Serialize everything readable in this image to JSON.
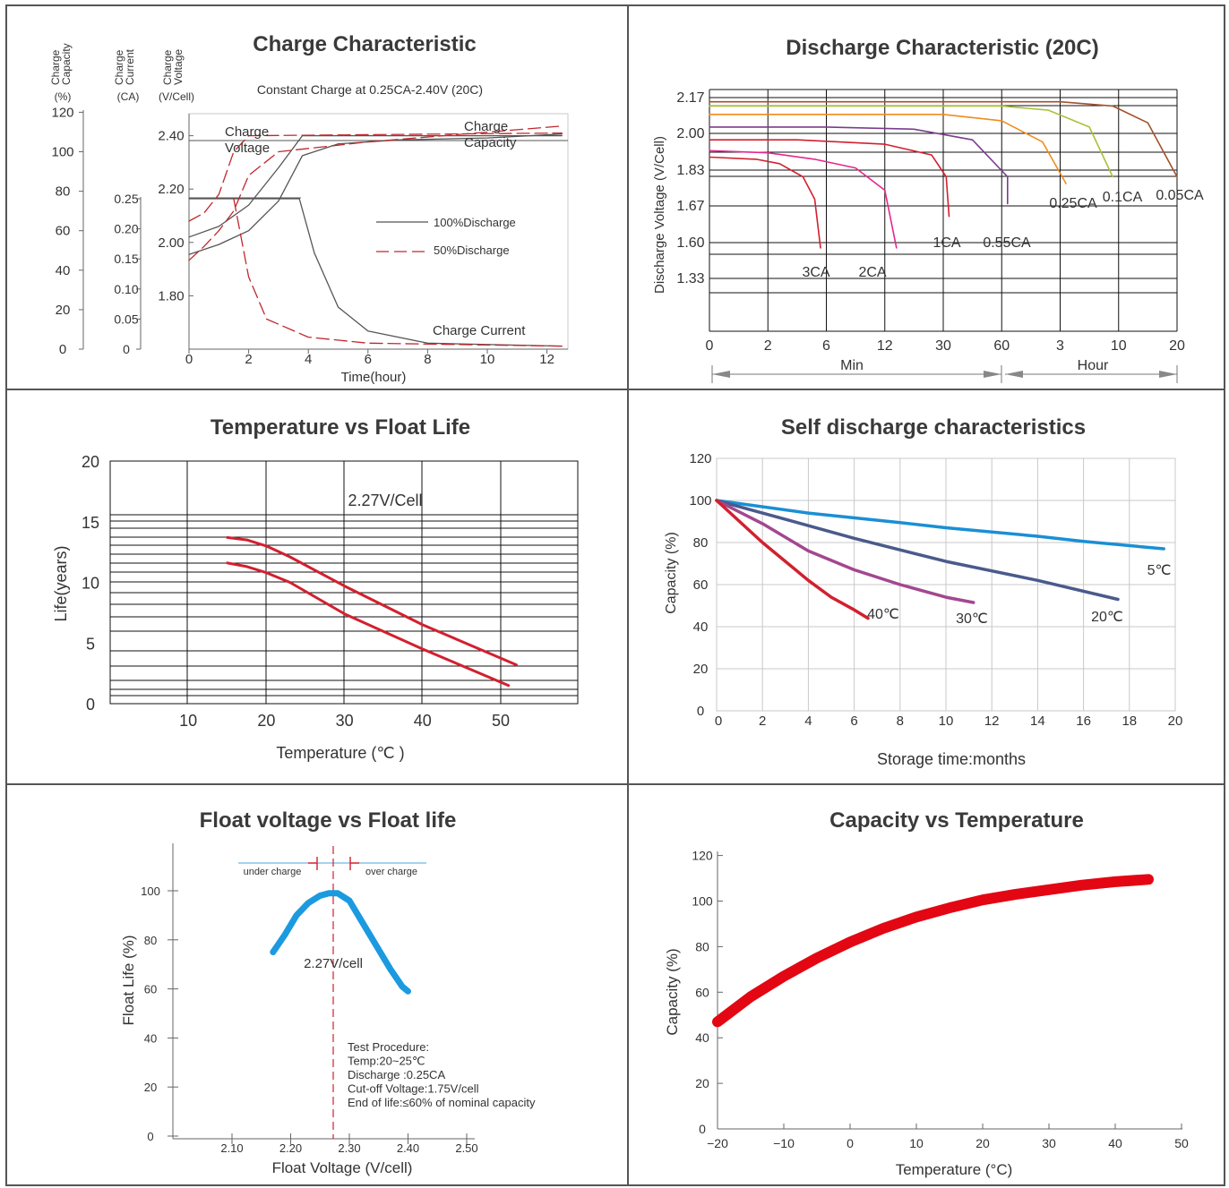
{
  "chart_data": [
    {
      "type": "line",
      "title": "Charge Characteristic",
      "subtitle": "Constant Charge at 0.25CA-2.40V  (20C)",
      "xlabel": "Time(hour)",
      "x_ticks": [
        "0",
        "2",
        "4",
        "6",
        "8",
        "10",
        "12"
      ],
      "axis_heads": {
        "capacity": [
          "Charge",
          "Capacity",
          "(%)"
        ],
        "current": [
          "Charge",
          "Current",
          "(CA)"
        ],
        "voltage": [
          "Charge",
          "Voltage",
          "(V/Cell)"
        ]
      },
      "capacity_ticks": [
        "120",
        "100",
        "80",
        "60",
        "40",
        "20",
        "0"
      ],
      "current_ticks": [
        "0.25",
        "0.20",
        "0.15",
        "0.10",
        "0.05",
        "0"
      ],
      "voltage_ticks": [
        "2.40",
        "2.20",
        "2.00",
        "1.80"
      ],
      "annotations": [
        "Charge",
        "Voltage",
        "Charge",
        "Capacity",
        "Charge Current"
      ],
      "series": [
        {
          "name": "100%Discharge",
          "color": "#555555",
          "voltage": [
            [
              0,
              2.02
            ],
            [
              1,
              2.06
            ],
            [
              2,
              2.14
            ],
            [
              3,
              2.28
            ],
            [
              3.8,
              2.4
            ],
            [
              12.5,
              2.4
            ]
          ],
          "capacity": [
            [
              0,
              48
            ],
            [
              1,
              53
            ],
            [
              2,
              60
            ],
            [
              3,
              75
            ],
            [
              3.8,
              98
            ],
            [
              5,
              104
            ],
            [
              7,
              106
            ],
            [
              10,
              107
            ],
            [
              12.5,
              109
            ]
          ],
          "current": [
            [
              0,
              0.25
            ],
            [
              3.7,
              0.25
            ],
            [
              4.2,
              0.16
            ],
            [
              5,
              0.07
            ],
            [
              6,
              0.03
            ],
            [
              8,
              0.01
            ],
            [
              12.5,
              0.005
            ]
          ]
        },
        {
          "name": "50%Discharge",
          "color": "#c0272d",
          "voltage": [
            [
              0,
              2.08
            ],
            [
              0.5,
              2.11
            ],
            [
              1,
              2.18
            ],
            [
              1.5,
              2.34
            ],
            [
              2,
              2.4
            ],
            [
              12.5,
              2.41
            ]
          ],
          "capacity": [
            [
              0,
              45
            ],
            [
              0.5,
              52
            ],
            [
              1,
              60
            ],
            [
              1.5,
              70
            ],
            [
              2,
              88
            ],
            [
              3,
              100
            ],
            [
              6,
              105
            ],
            [
              12.5,
              113
            ]
          ],
          "current": [
            [
              1.5,
              0.25
            ],
            [
              2,
              0.12
            ],
            [
              2.6,
              0.05
            ],
            [
              4,
              0.02
            ],
            [
              6,
              0.01
            ],
            [
              12.5,
              0.005
            ]
          ]
        }
      ]
    },
    {
      "type": "line",
      "title": "Discharge Characteristic (20C)",
      "ylabel": "Discharge Voltage (V/Cell)",
      "y_ticks": [
        "2.17",
        "2.00",
        "1.83",
        "1.67",
        "1.60",
        "1.33"
      ],
      "x_ticks": [
        "0",
        "2",
        "6",
        "12",
        "30",
        "60",
        "3",
        "10",
        "20"
      ],
      "x_units": [
        "Min",
        "Hour"
      ],
      "series": [
        {
          "name": "3CA",
          "color": "#d2202f",
          "points": [
            [
              0,
              1.89
            ],
            [
              0.8,
              1.88
            ],
            [
              1.2,
              1.86
            ],
            [
              1.6,
              1.8
            ],
            [
              1.8,
              1.7
            ],
            [
              1.9,
              1.56
            ]
          ]
        },
        {
          "name": "2CA",
          "color": "#e2288f",
          "points": [
            [
              0,
              1.92
            ],
            [
              1,
              1.91
            ],
            [
              1.8,
              1.88
            ],
            [
              2.5,
              1.84
            ],
            [
              3,
              1.74
            ],
            [
              3.2,
              1.56
            ]
          ]
        },
        {
          "name": "1CA",
          "color": "#d2202f",
          "points": [
            [
              0,
              1.97
            ],
            [
              1.5,
              1.97
            ],
            [
              3,
              1.95
            ],
            [
              3.8,
              1.9
            ],
            [
              4.05,
              1.8
            ],
            [
              4.1,
              1.65
            ]
          ]
        },
        {
          "name": "0.55CA",
          "color": "#7a3d8c",
          "points": [
            [
              0,
              2.03
            ],
            [
              2,
              2.03
            ],
            [
              3.5,
              2.02
            ],
            [
              4.5,
              1.97
            ],
            [
              5.1,
              1.8
            ],
            [
              5.1,
              1.68
            ]
          ]
        },
        {
          "name": "0.25CA",
          "color": "#f08c1e",
          "points": [
            [
              0,
              2.09
            ],
            [
              4,
              2.09
            ],
            [
              5,
              2.06
            ],
            [
              5.7,
              1.96
            ],
            [
              6.1,
              1.77
            ]
          ]
        },
        {
          "name": "0.1CA",
          "color": "#a9c23a",
          "points": [
            [
              0,
              2.13
            ],
            [
              5,
              2.13
            ],
            [
              5.8,
              2.11
            ],
            [
              6.5,
              2.03
            ],
            [
              6.9,
              1.8
            ]
          ]
        },
        {
          "name": "0.05CA",
          "color": "#a0522d",
          "points": [
            [
              0,
              2.15
            ],
            [
              6,
              2.15
            ],
            [
              6.9,
              2.13
            ],
            [
              7.5,
              2.05
            ],
            [
              8,
              1.8
            ]
          ]
        }
      ]
    },
    {
      "type": "line",
      "title": "Temperature vs Float Life",
      "xlabel": "Temperature (℃ )",
      "ylabel": "Life(years)",
      "x_ticks": [
        10,
        20,
        30,
        40,
        50
      ],
      "y_ticks": [
        0,
        5,
        10,
        15,
        20
      ],
      "annotation": "2.27V/Cell",
      "series": [
        {
          "name": "",
          "color": "#d2202f",
          "points": [
            [
              15,
              13.7
            ],
            [
              17.5,
              13.5
            ],
            [
              20,
              13
            ],
            [
              23,
              12.1
            ],
            [
              30,
              9.7
            ],
            [
              40,
              6.5
            ],
            [
              52,
              3.2
            ]
          ]
        },
        {
          "name": "",
          "color": "#d2202f",
          "points": [
            [
              15,
              11.6
            ],
            [
              17.5,
              11.3
            ],
            [
              20,
              10.8
            ],
            [
              23,
              10
            ],
            [
              30,
              7.4
            ],
            [
              40,
              4.5
            ],
            [
              51,
              1.5
            ]
          ]
        }
      ]
    },
    {
      "type": "line",
      "title": "Self discharge characteristics",
      "xlabel": "Storage time:months",
      "ylabel": "Capacity (%)",
      "x_ticks": [
        0,
        2,
        4,
        6,
        8,
        10,
        12,
        14,
        16,
        18,
        20
      ],
      "y_ticks": [
        0,
        20,
        40,
        60,
        80,
        100,
        120
      ],
      "series": [
        {
          "name": "5℃",
          "color": "#1a8fd4",
          "points": [
            [
              0,
              100
            ],
            [
              4,
              94
            ],
            [
              8,
              89.5
            ],
            [
              10,
              87
            ],
            [
              14,
              83
            ],
            [
              16,
              80.5
            ],
            [
              19.5,
              77
            ]
          ]
        },
        {
          "name": "20℃",
          "color": "#4b5a8c",
          "points": [
            [
              0,
              100
            ],
            [
              3,
              91
            ],
            [
              6,
              82
            ],
            [
              10,
              71
            ],
            [
              14,
              62
            ],
            [
              17.5,
              53
            ]
          ]
        },
        {
          "name": "30℃",
          "color": "#a3478f",
          "points": [
            [
              0,
              100
            ],
            [
              2,
              89
            ],
            [
              4,
              76
            ],
            [
              6,
              67
            ],
            [
              8,
              60
            ],
            [
              10,
              54
            ],
            [
              11.2,
              51.5
            ]
          ]
        },
        {
          "name": "40℃",
          "color": "#d2202f",
          "points": [
            [
              0,
              100
            ],
            [
              1,
              90
            ],
            [
              2,
              80
            ],
            [
              3,
              71
            ],
            [
              4,
              62
            ],
            [
              5,
              54
            ],
            [
              6,
              48
            ],
            [
              6.6,
              44
            ]
          ]
        }
      ]
    },
    {
      "type": "line",
      "title": "Float voltage vs Float life",
      "xlabel": "Float Voltage (V/cell)",
      "ylabel": "Float Life (%)",
      "x_ticks": [
        "2.10",
        "2.20",
        "2.30",
        "2.40",
        "2.50"
      ],
      "y_ticks": [
        "0",
        "20",
        "40",
        "60",
        "80",
        "100"
      ],
      "annotations": [
        "under charge",
        "over charge",
        "2.27V/cell"
      ],
      "procedure": [
        "Test Procedure:",
        "Temp:20~25℃",
        "Discharge :0.25CA",
        "Cut-off Voltage:1.75V/cell",
        "End of life:≤60% of nominal capacity"
      ],
      "series": [
        {
          "name": "",
          "color": "#1b9ae0",
          "points": [
            [
              2.17,
              75
            ],
            [
              2.19,
              82
            ],
            [
              2.21,
              90
            ],
            [
              2.23,
              95
            ],
            [
              2.25,
              98
            ],
            [
              2.265,
              99
            ],
            [
              2.28,
              99
            ],
            [
              2.3,
              96
            ],
            [
              2.32,
              88
            ],
            [
              2.35,
              76
            ],
            [
              2.37,
              68
            ],
            [
              2.39,
              61
            ],
            [
              2.4,
              59
            ]
          ]
        }
      ]
    },
    {
      "type": "line",
      "title": "Capacity vs Temperature",
      "xlabel": "Temperature (°C)",
      "ylabel": "Capacity (%)",
      "x_ticks": [
        "−20",
        "−10",
        "0",
        "10",
        "20",
        "30",
        "40",
        "50"
      ],
      "y_ticks": [
        0,
        20,
        40,
        60,
        80,
        100,
        120
      ],
      "series": [
        {
          "name": "",
          "color": "#e30613",
          "points": [
            [
              -20,
              47
            ],
            [
              -15,
              58
            ],
            [
              -10,
              67
            ],
            [
              -5,
              75
            ],
            [
              0,
              82
            ],
            [
              5,
              88
            ],
            [
              10,
              93
            ],
            [
              15,
              97
            ],
            [
              20,
              100.5
            ],
            [
              25,
              103
            ],
            [
              30,
              105
            ],
            [
              35,
              107
            ],
            [
              40,
              108.5
            ],
            [
              45,
              109.5
            ]
          ]
        }
      ]
    }
  ]
}
